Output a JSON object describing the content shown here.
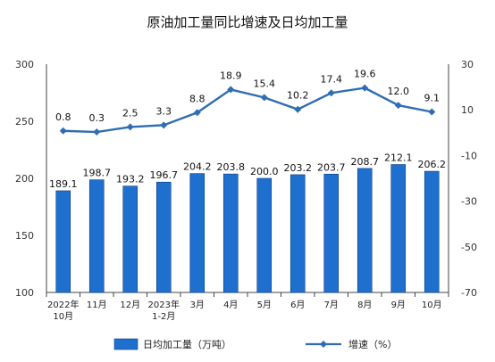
{
  "chart_data": {
    "type": "bar+line",
    "title": "原油加工量同比增速及日均加工量",
    "categories": [
      [
        "2022年",
        "10月"
      ],
      [
        "11月"
      ],
      [
        "12月"
      ],
      [
        "2023年",
        "1-2月"
      ],
      [
        "3月"
      ],
      [
        "4月"
      ],
      [
        "5月"
      ],
      [
        "6月"
      ],
      [
        "7月"
      ],
      [
        "8月"
      ],
      [
        "9月"
      ],
      [
        "10月"
      ]
    ],
    "series": [
      {
        "name": "日均加工量（万吨）",
        "kind": "bar",
        "axis": "left",
        "color": "#1f6fcf",
        "values": [
          189.1,
          198.7,
          193.2,
          196.7,
          204.2,
          203.8,
          200.0,
          203.2,
          203.7,
          208.7,
          212.1,
          206.2
        ],
        "labels": [
          "189.1",
          "198.7",
          "193.2",
          "196.7",
          "204.2",
          "203.8",
          "200.0",
          "203.2",
          "203.7",
          "208.7",
          "212.1",
          "206.2"
        ]
      },
      {
        "name": "增速（%）",
        "kind": "line",
        "axis": "right",
        "color": "#2f6db3",
        "values": [
          0.8,
          0.3,
          2.5,
          3.3,
          8.8,
          18.9,
          15.4,
          10.2,
          17.4,
          19.6,
          12.0,
          9.1
        ],
        "labels": [
          "0.8",
          "0.3",
          "2.5",
          "3.3",
          "8.8",
          "18.9",
          "15.4",
          "10.2",
          "17.4",
          "19.6",
          "12.0",
          "9.1"
        ]
      }
    ],
    "left_axis": {
      "ylim": [
        100,
        300
      ],
      "ticks": [
        "300",
        "250",
        "200",
        "150",
        "100"
      ]
    },
    "right_axis": {
      "ylim": [
        -70,
        30
      ],
      "ticks": [
        "30",
        "10",
        "-10",
        "-30",
        "-50",
        "-70"
      ]
    },
    "grid": false,
    "legend": "bottom"
  }
}
